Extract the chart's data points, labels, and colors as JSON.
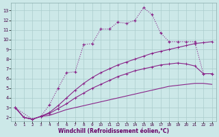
{
  "bg_color": "#cce8e8",
  "grid_color": "#aacccc",
  "line_color": "#882288",
  "xlabel": "Windchill (Refroidissement éolien,°C)",
  "xlim": [
    -0.5,
    23.5
  ],
  "ylim": [
    1.6,
    13.8
  ],
  "xticks": [
    0,
    1,
    2,
    3,
    4,
    5,
    6,
    7,
    8,
    9,
    10,
    11,
    12,
    13,
    14,
    15,
    16,
    17,
    18,
    19,
    20,
    21,
    22,
    23
  ],
  "yticks": [
    2,
    3,
    4,
    5,
    6,
    7,
    8,
    9,
    10,
    11,
    12,
    13
  ],
  "s1x": [
    0,
    1,
    2,
    3,
    4,
    5,
    6,
    7,
    8,
    9,
    10,
    11,
    12,
    13,
    14,
    15,
    16,
    17,
    18,
    19,
    20,
    21,
    22,
    23
  ],
  "s1y": [
    3.0,
    2.0,
    1.8,
    2.1,
    2.2,
    2.5,
    2.8,
    3.0,
    3.2,
    3.4,
    3.6,
    3.8,
    4.0,
    4.2,
    4.4,
    4.6,
    4.8,
    5.0,
    5.2,
    5.3,
    5.4,
    5.5,
    5.5,
    5.4
  ],
  "s2x": [
    0,
    1,
    2,
    3,
    4,
    5,
    6,
    7,
    8,
    9,
    10,
    11,
    12,
    13,
    14,
    15,
    16,
    17,
    18,
    19,
    20,
    21,
    22,
    23
  ],
  "s2y": [
    3.0,
    2.0,
    1.8,
    2.1,
    2.4,
    2.9,
    3.4,
    4.0,
    4.5,
    5.0,
    5.4,
    5.8,
    6.2,
    6.5,
    6.8,
    7.0,
    7.2,
    7.4,
    7.5,
    7.6,
    7.5,
    7.3,
    6.5,
    6.5
  ],
  "s3x": [
    0,
    1,
    2,
    3,
    4,
    5,
    6,
    7,
    8,
    9,
    10,
    11,
    12,
    13,
    14,
    15,
    16,
    17,
    18,
    19,
    20,
    21,
    22,
    23
  ],
  "s3y": [
    3.0,
    2.0,
    1.8,
    2.1,
    2.5,
    3.2,
    4.0,
    4.8,
    5.5,
    6.1,
    6.6,
    7.0,
    7.4,
    7.7,
    8.0,
    8.3,
    8.6,
    8.8,
    9.0,
    9.2,
    9.4,
    9.6,
    9.7,
    9.8
  ],
  "s4x": [
    0,
    2,
    3,
    4,
    5,
    6,
    7,
    8,
    9,
    10,
    11,
    12,
    13,
    14,
    15,
    16,
    17,
    18,
    19,
    20,
    21,
    22,
    23
  ],
  "s4y": [
    3.0,
    1.8,
    2.1,
    3.3,
    5.0,
    6.6,
    6.7,
    9.5,
    9.6,
    11.1,
    11.1,
    11.8,
    11.7,
    12.0,
    13.3,
    12.6,
    10.7,
    9.8,
    9.8,
    9.8,
    9.8,
    6.5,
    6.5
  ]
}
